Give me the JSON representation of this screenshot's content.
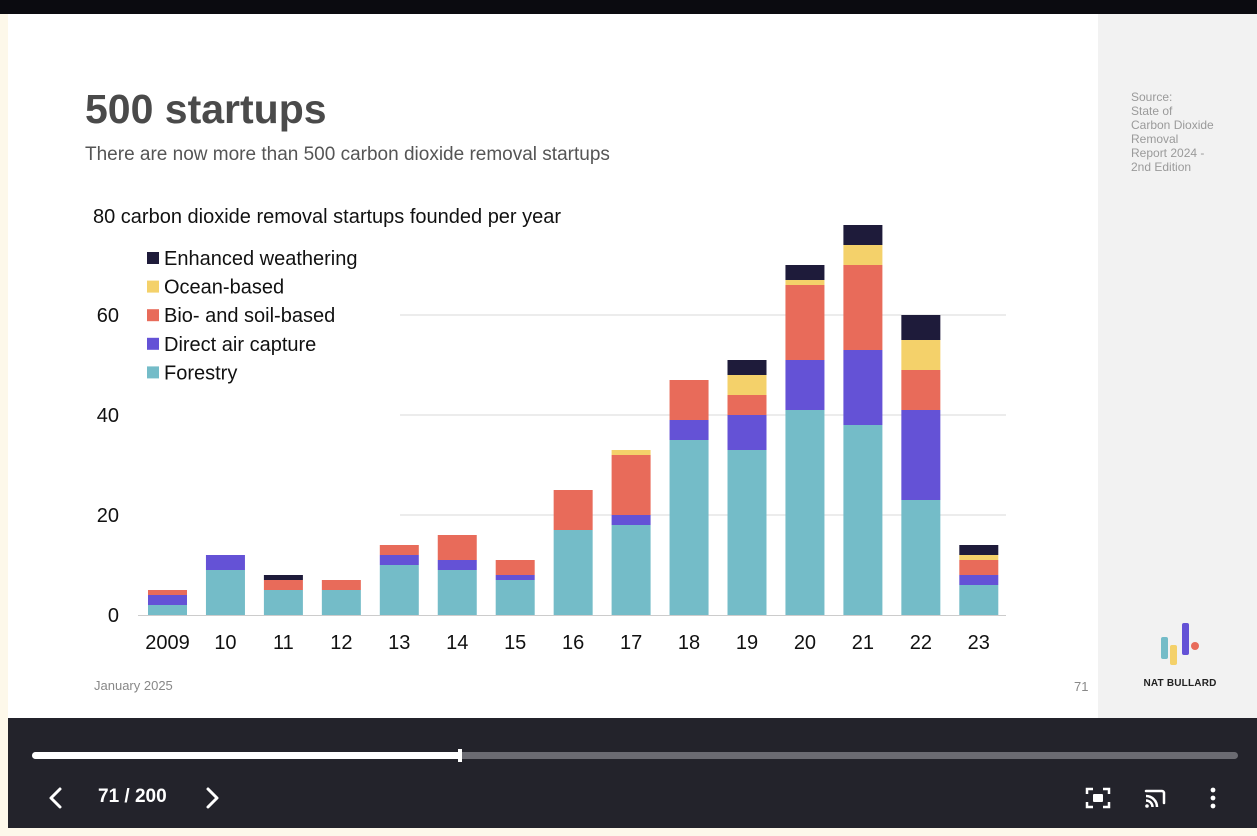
{
  "slide": {
    "title": "500 startups",
    "subtitle": "There are now more than 500 carbon dioxide removal startups",
    "source_lines": [
      "Source:",
      "State of",
      "Carbon Dioxide",
      "Removal",
      "Report 2024 -",
      "2nd Edition"
    ],
    "footer_date": "January 2025",
    "page_number": "71",
    "brand": "NAT BULLARD"
  },
  "chart_data": {
    "type": "bar",
    "stacked": true,
    "title": "80 carbon dioxide removal startups founded per year",
    "categories": [
      "2009",
      "10",
      "11",
      "12",
      "13",
      "14",
      "15",
      "16",
      "17",
      "18",
      "19",
      "20",
      "21",
      "22",
      "23"
    ],
    "series": [
      {
        "name": "Forestry",
        "color": "#74bcc8",
        "values": [
          2,
          9,
          5,
          5,
          10,
          9,
          7,
          17,
          18,
          35,
          33,
          41,
          38,
          23,
          6
        ]
      },
      {
        "name": "Direct air capture",
        "color": "#6452d6",
        "values": [
          2,
          3,
          0,
          0,
          2,
          2,
          1,
          0,
          2,
          4,
          7,
          10,
          15,
          18,
          2
        ]
      },
      {
        "name": "Bio- and soil-based",
        "color": "#e86b5a",
        "values": [
          1,
          0,
          2,
          2,
          2,
          5,
          3,
          8,
          12,
          8,
          4,
          15,
          17,
          8,
          3
        ]
      },
      {
        "name": "Ocean-based",
        "color": "#f4d16a",
        "values": [
          0,
          0,
          0,
          0,
          0,
          0,
          0,
          0,
          1,
          0,
          4,
          1,
          4,
          6,
          1
        ]
      },
      {
        "name": "Enhanced weathering",
        "color": "#1e1b3a",
        "values": [
          0,
          0,
          1,
          0,
          0,
          0,
          0,
          0,
          0,
          0,
          3,
          3,
          4,
          5,
          2
        ]
      }
    ],
    "legend_order": [
      "Enhanced weathering",
      "Ocean-based",
      "Bio- and soil-based",
      "Direct air capture",
      "Forestry"
    ],
    "legend_position": "top-left",
    "yticks": [
      "0",
      "20",
      "40",
      "60"
    ],
    "ytick_values": [
      0,
      20,
      40,
      60
    ],
    "ylim": [
      0,
      80
    ],
    "grid": true
  },
  "player": {
    "counter": "71 / 200",
    "progress": 0.3545
  }
}
